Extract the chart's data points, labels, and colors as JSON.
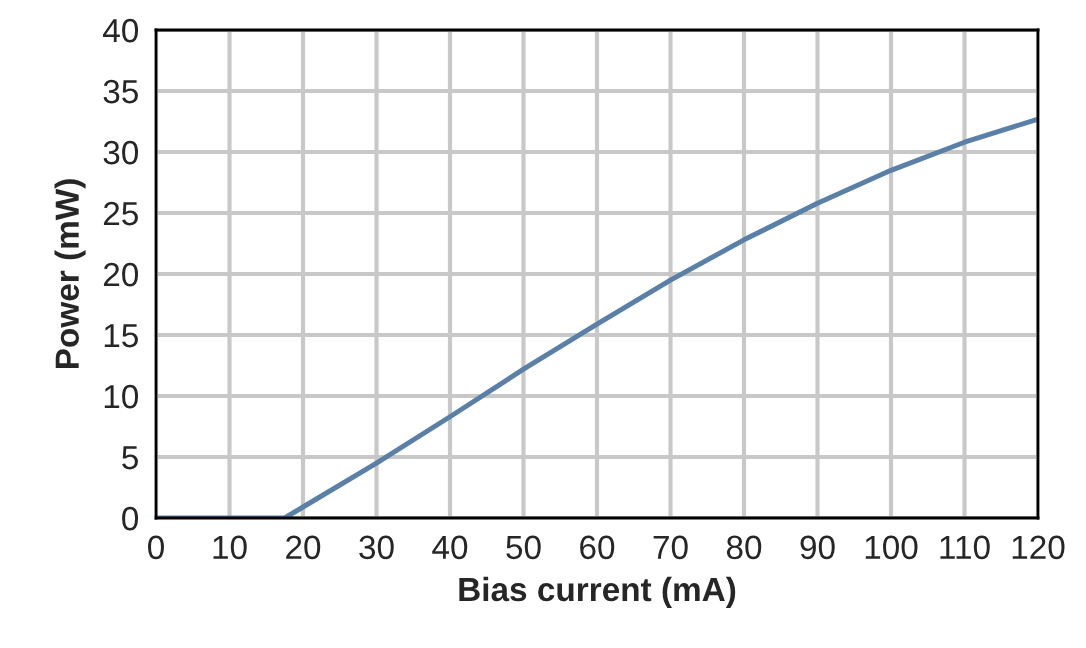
{
  "chart_data": {
    "type": "line",
    "xlabel": "Bias current (mA)",
    "ylabel": "Power (mW)",
    "x": [
      0,
      10,
      17.5,
      20,
      30,
      40,
      50,
      60,
      70,
      80,
      90,
      100,
      110,
      120
    ],
    "series": [
      {
        "color": "#5b80a8",
        "values": [
          0,
          0,
          0,
          0.9,
          4.5,
          8.3,
          12.2,
          15.9,
          19.5,
          22.8,
          25.8,
          28.5,
          30.8,
          32.7
        ]
      }
    ],
    "xlim": [
      0,
      120
    ],
    "ylim": [
      0,
      40
    ],
    "xticks": [
      0,
      10,
      20,
      30,
      40,
      50,
      60,
      70,
      80,
      90,
      100,
      110,
      120
    ],
    "yticks": [
      0,
      5,
      10,
      15,
      20,
      25,
      30,
      35,
      40
    ],
    "grid": true,
    "marker": "none",
    "line_style": "solid"
  }
}
